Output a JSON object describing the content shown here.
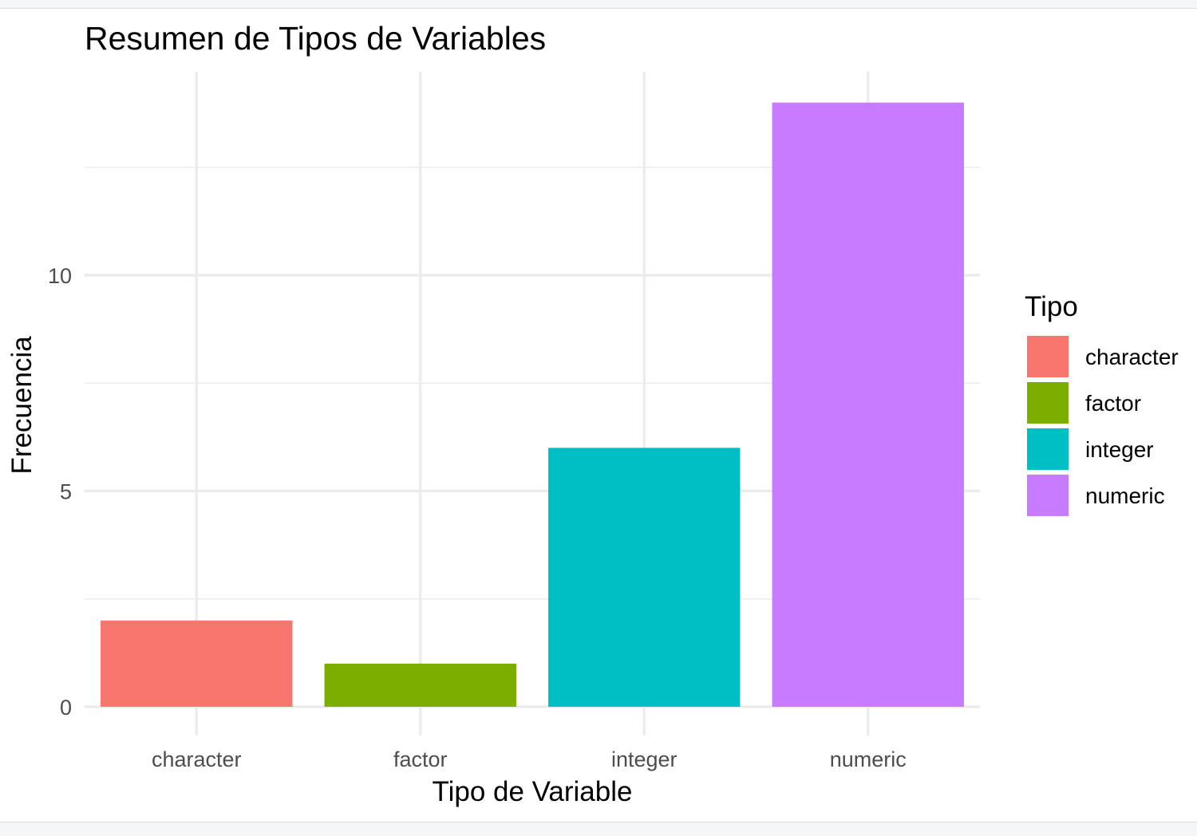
{
  "chart_data": {
    "type": "bar",
    "title": "Resumen de Tipos de Variables",
    "xlabel": "Tipo de Variable",
    "ylabel": "Frecuencia",
    "categories": [
      "character",
      "factor",
      "integer",
      "numeric"
    ],
    "values": [
      2,
      1,
      6,
      14
    ],
    "colors": [
      "#F8766D",
      "#7CAE00",
      "#00BFC4",
      "#C77CFF"
    ],
    "ylim": [
      0,
      14.7
    ],
    "yticks": [
      0,
      5,
      10
    ],
    "ytick_labels": [
      "0",
      "5",
      "10"
    ],
    "grid": true,
    "legend": {
      "title": "Tipo",
      "position": "right",
      "entries": [
        "character",
        "factor",
        "integer",
        "numeric"
      ]
    }
  }
}
